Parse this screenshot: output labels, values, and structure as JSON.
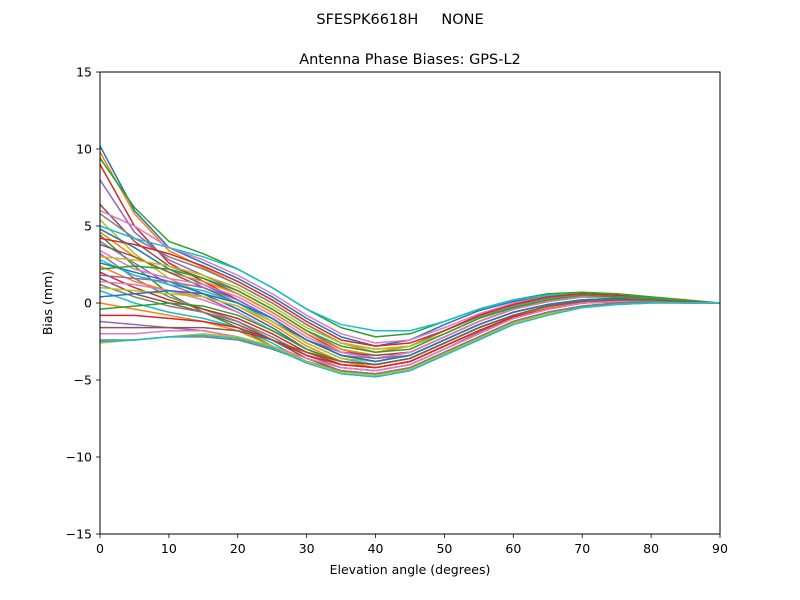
{
  "figure_title": "SFESPK6618H     NONE",
  "chart_data": {
    "type": "line",
    "title": "Antenna Phase Biases: GPS-L2",
    "xlabel": "Elevation angle (degrees)",
    "ylabel": "Bias (mm)",
    "xlim": [
      0,
      90
    ],
    "ylim": [
      -15,
      15
    ],
    "xticks": [
      0,
      10,
      20,
      30,
      40,
      50,
      60,
      70,
      80,
      90
    ],
    "yticks": [
      -15,
      -10,
      -5,
      0,
      5,
      10,
      15
    ],
    "xtick_labels": [
      "0",
      "10",
      "20",
      "30",
      "40",
      "50",
      "60",
      "70",
      "80",
      "90"
    ],
    "ytick_labels": [
      "−15",
      "−10",
      "−5",
      "0",
      "5",
      "10",
      "15"
    ],
    "grid": false,
    "legend": "none",
    "x": [
      0,
      5,
      10,
      15,
      20,
      25,
      30,
      35,
      40,
      45,
      50,
      55,
      60,
      65,
      70,
      75,
      80,
      85,
      90
    ],
    "colors": [
      "#1f77b4",
      "#ff7f0e",
      "#2ca02c",
      "#d62728",
      "#9467bd",
      "#8c564b",
      "#e377c2",
      "#7f7f7f",
      "#bcbd22",
      "#17becf"
    ],
    "series": [
      {
        "values": [
          10.2,
          6.0,
          3.6,
          2.6,
          1.6,
          0.4,
          -1.0,
          -2.2,
          -2.8,
          -2.4,
          -1.4,
          -0.5,
          0.1,
          0.5,
          0.6,
          0.5,
          0.3,
          0.1,
          0.0
        ]
      },
      {
        "values": [
          9.8,
          5.8,
          3.4,
          2.3,
          1.2,
          0.0,
          -1.4,
          -2.6,
          -3.2,
          -2.8,
          -1.8,
          -0.8,
          -0.1,
          0.3,
          0.5,
          0.4,
          0.3,
          0.1,
          0.0
        ]
      },
      {
        "values": [
          9.4,
          6.2,
          4.0,
          3.2,
          2.2,
          1.0,
          -0.4,
          -1.6,
          -2.2,
          -2.0,
          -1.2,
          -0.4,
          0.2,
          0.6,
          0.7,
          0.6,
          0.4,
          0.2,
          0.0
        ]
      },
      {
        "values": [
          9.0,
          5.0,
          2.6,
          1.4,
          0.2,
          -1.0,
          -2.4,
          -3.4,
          -3.8,
          -3.4,
          -2.4,
          -1.4,
          -0.6,
          -0.1,
          0.2,
          0.2,
          0.2,
          0.1,
          0.0
        ]
      },
      {
        "values": [
          8.0,
          4.6,
          2.8,
          1.8,
          0.8,
          -0.4,
          -1.8,
          -3.0,
          -3.6,
          -3.2,
          -2.2,
          -1.2,
          -0.4,
          0.1,
          0.4,
          0.4,
          0.3,
          0.1,
          0.0
        ]
      },
      {
        "values": [
          6.4,
          4.0,
          2.4,
          1.6,
          0.6,
          -0.6,
          -2.0,
          -3.2,
          -3.6,
          -3.2,
          -2.2,
          -1.2,
          -0.4,
          0.1,
          0.4,
          0.4,
          0.3,
          0.1,
          0.0
        ]
      },
      {
        "values": [
          6.0,
          5.0,
          3.6,
          2.8,
          1.8,
          0.6,
          -0.8,
          -2.0,
          -2.6,
          -2.4,
          -1.6,
          -0.7,
          0.0,
          0.4,
          0.6,
          0.5,
          0.3,
          0.1,
          0.0
        ]
      },
      {
        "values": [
          5.8,
          4.2,
          3.0,
          2.2,
          1.2,
          0.0,
          -1.4,
          -2.6,
          -3.0,
          -2.8,
          -1.8,
          -0.9,
          -0.2,
          0.3,
          0.5,
          0.4,
          0.3,
          0.1,
          0.0
        ]
      },
      {
        "values": [
          5.4,
          3.2,
          1.6,
          0.6,
          -0.4,
          -1.6,
          -3.0,
          -4.0,
          -4.2,
          -3.8,
          -2.8,
          -1.8,
          -0.9,
          -0.4,
          0.0,
          0.1,
          0.1,
          0.1,
          0.0
        ]
      },
      {
        "values": [
          5.0,
          4.2,
          3.6,
          3.0,
          2.2,
          1.0,
          -0.4,
          -1.4,
          -1.8,
          -1.8,
          -1.2,
          -0.4,
          0.2,
          0.5,
          0.6,
          0.5,
          0.3,
          0.1,
          0.0
        ]
      },
      {
        "values": [
          4.8,
          3.6,
          2.2,
          1.2,
          0.2,
          -1.0,
          -2.4,
          -3.4,
          -3.8,
          -3.4,
          -2.4,
          -1.4,
          -0.6,
          -0.1,
          0.2,
          0.3,
          0.2,
          0.1,
          0.0
        ]
      },
      {
        "values": [
          4.6,
          3.0,
          2.0,
          1.4,
          0.6,
          -0.6,
          -2.0,
          -3.0,
          -3.4,
          -3.2,
          -2.2,
          -1.2,
          -0.4,
          0.1,
          0.4,
          0.4,
          0.3,
          0.1,
          0.0
        ]
      },
      {
        "values": [
          4.4,
          2.4,
          0.6,
          -0.6,
          -1.6,
          -2.8,
          -3.8,
          -4.4,
          -4.6,
          -4.2,
          -3.2,
          -2.2,
          -1.2,
          -0.6,
          -0.2,
          0.0,
          0.1,
          0.0,
          0.0
        ]
      },
      {
        "values": [
          4.2,
          3.8,
          3.2,
          2.4,
          1.4,
          0.2,
          -1.2,
          -2.4,
          -2.8,
          -2.6,
          -1.8,
          -0.8,
          -0.1,
          0.4,
          0.6,
          0.5,
          0.3,
          0.1,
          0.0
        ]
      },
      {
        "values": [
          4.0,
          2.6,
          1.2,
          0.4,
          -0.6,
          -1.8,
          -3.0,
          -3.8,
          -4.0,
          -3.6,
          -2.6,
          -1.6,
          -0.8,
          -0.2,
          0.1,
          0.2,
          0.2,
          0.1,
          0.0
        ]
      },
      {
        "values": [
          3.8,
          3.0,
          2.0,
          1.0,
          0.0,
          -1.2,
          -2.4,
          -3.2,
          -3.4,
          -3.2,
          -2.2,
          -1.2,
          -0.4,
          0.1,
          0.4,
          0.4,
          0.3,
          0.1,
          0.0
        ]
      },
      {
        "values": [
          3.4,
          2.2,
          1.6,
          1.2,
          0.4,
          -0.8,
          -2.2,
          -3.2,
          -3.6,
          -3.2,
          -2.2,
          -1.2,
          -0.4,
          0.1,
          0.4,
          0.4,
          0.3,
          0.1,
          0.0
        ]
      },
      {
        "values": [
          3.2,
          1.6,
          0.4,
          -0.4,
          -1.2,
          -2.4,
          -3.6,
          -4.2,
          -4.4,
          -4.0,
          -3.0,
          -1.9,
          -1.0,
          -0.4,
          0.0,
          0.1,
          0.1,
          0.0,
          0.0
        ]
      },
      {
        "values": [
          3.0,
          2.8,
          2.4,
          1.8,
          1.0,
          -0.2,
          -1.6,
          -2.6,
          -3.0,
          -2.8,
          -2.0,
          -1.0,
          -0.3,
          0.2,
          0.5,
          0.4,
          0.3,
          0.1,
          0.0
        ]
      },
      {
        "values": [
          2.8,
          1.8,
          1.2,
          0.8,
          0.0,
          -1.2,
          -2.6,
          -3.6,
          -4.0,
          -3.6,
          -2.6,
          -1.6,
          -0.8,
          -0.2,
          0.1,
          0.2,
          0.2,
          0.1,
          0.0
        ]
      },
      {
        "values": [
          2.6,
          2.0,
          1.4,
          0.6,
          -0.4,
          -1.6,
          -3.0,
          -3.8,
          -4.0,
          -3.6,
          -2.6,
          -1.6,
          -0.8,
          -0.2,
          0.1,
          0.2,
          0.2,
          0.1,
          0.0
        ]
      },
      {
        "values": [
          2.4,
          1.4,
          0.8,
          0.4,
          -0.2,
          -1.4,
          -2.8,
          -3.8,
          -4.2,
          -3.8,
          -2.8,
          -1.8,
          -0.9,
          -0.3,
          0.0,
          0.1,
          0.1,
          0.1,
          0.0
        ]
      },
      {
        "values": [
          2.2,
          2.4,
          2.2,
          1.6,
          0.8,
          -0.4,
          -1.8,
          -2.8,
          -3.2,
          -3.0,
          -2.0,
          -1.0,
          -0.3,
          0.2,
          0.5,
          0.4,
          0.3,
          0.1,
          0.0
        ]
      },
      {
        "values": [
          2.0,
          1.0,
          0.2,
          -0.4,
          -1.0,
          -2.0,
          -3.2,
          -4.0,
          -4.2,
          -3.8,
          -2.8,
          -1.8,
          -0.9,
          -0.4,
          0.0,
          0.1,
          0.1,
          0.0,
          0.0
        ]
      },
      {
        "values": [
          1.8,
          1.6,
          1.4,
          1.0,
          0.2,
          -1.0,
          -2.4,
          -3.4,
          -3.6,
          -3.4,
          -2.4,
          -1.4,
          -0.6,
          -0.1,
          0.2,
          0.3,
          0.2,
          0.1,
          0.0
        ]
      },
      {
        "values": [
          1.6,
          0.6,
          0.0,
          -0.6,
          -1.4,
          -2.4,
          -3.6,
          -4.4,
          -4.6,
          -4.2,
          -3.2,
          -2.2,
          -1.2,
          -0.6,
          -0.2,
          0.0,
          0.1,
          0.0,
          0.0
        ]
      },
      {
        "values": [
          1.4,
          1.2,
          0.8,
          0.2,
          -0.6,
          -1.8,
          -3.0,
          -3.8,
          -4.0,
          -3.6,
          -2.6,
          -1.6,
          -0.8,
          -0.2,
          0.1,
          0.2,
          0.2,
          0.1,
          0.0
        ]
      },
      {
        "values": [
          1.2,
          0.4,
          -0.2,
          -0.6,
          -1.2,
          -2.2,
          -3.4,
          -4.2,
          -4.4,
          -4.0,
          -3.0,
          -2.0,
          -1.0,
          -0.4,
          0.0,
          0.1,
          0.1,
          0.0,
          0.0
        ]
      },
      {
        "values": [
          1.0,
          0.8,
          0.6,
          0.4,
          -0.2,
          -1.2,
          -2.6,
          -3.6,
          -3.8,
          -3.4,
          -2.4,
          -1.4,
          -0.6,
          -0.1,
          0.2,
          0.3,
          0.2,
          0.1,
          0.0
        ]
      },
      {
        "values": [
          0.8,
          0.0,
          -0.6,
          -1.0,
          -1.6,
          -2.6,
          -3.8,
          -4.4,
          -4.6,
          -4.2,
          -3.2,
          -2.2,
          -1.2,
          -0.6,
          -0.2,
          0.0,
          0.1,
          0.0,
          0.0
        ]
      },
      {
        "values": [
          0.4,
          0.6,
          0.8,
          0.6,
          0.0,
          -1.0,
          -2.4,
          -3.4,
          -3.8,
          -3.4,
          -2.4,
          -1.4,
          -0.6,
          -0.1,
          0.2,
          0.3,
          0.2,
          0.1,
          0.0
        ]
      },
      {
        "values": [
          0.0,
          -0.4,
          -0.8,
          -1.2,
          -1.8,
          -2.8,
          -3.8,
          -4.4,
          -4.6,
          -4.2,
          -3.2,
          -2.2,
          -1.2,
          -0.6,
          -0.2,
          0.0,
          0.1,
          0.0,
          0.0
        ]
      },
      {
        "values": [
          -0.4,
          -0.2,
          0.0,
          -0.2,
          -0.8,
          -1.8,
          -3.0,
          -3.8,
          -4.0,
          -3.6,
          -2.6,
          -1.6,
          -0.8,
          -0.2,
          0.1,
          0.2,
          0.2,
          0.1,
          0.0
        ]
      },
      {
        "values": [
          -0.8,
          -0.8,
          -1.0,
          -1.2,
          -1.6,
          -2.4,
          -3.4,
          -4.0,
          -4.2,
          -3.8,
          -2.8,
          -1.8,
          -0.9,
          -0.4,
          0.0,
          0.1,
          0.1,
          0.0,
          0.0
        ]
      },
      {
        "values": [
          -1.2,
          -1.4,
          -1.6,
          -1.8,
          -2.2,
          -2.8,
          -3.8,
          -4.4,
          -4.6,
          -4.2,
          -3.2,
          -2.2,
          -1.2,
          -0.6,
          -0.2,
          0.0,
          0.1,
          0.0,
          0.0
        ]
      },
      {
        "values": [
          -1.6,
          -1.6,
          -1.6,
          -1.6,
          -1.8,
          -2.4,
          -3.2,
          -3.8,
          -4.0,
          -3.6,
          -2.6,
          -1.6,
          -0.8,
          -0.2,
          0.1,
          0.2,
          0.2,
          0.1,
          0.0
        ]
      },
      {
        "values": [
          -2.0,
          -2.0,
          -1.8,
          -1.8,
          -2.2,
          -2.8,
          -3.6,
          -4.2,
          -4.4,
          -4.0,
          -3.0,
          -2.0,
          -1.0,
          -0.4,
          0.0,
          0.1,
          0.1,
          0.0,
          0.0
        ]
      },
      {
        "values": [
          -2.4,
          -2.4,
          -2.2,
          -2.2,
          -2.4,
          -3.0,
          -3.8,
          -4.4,
          -4.6,
          -4.2,
          -3.2,
          -2.2,
          -1.2,
          -0.6,
          -0.2,
          0.0,
          0.1,
          0.0,
          0.0
        ]
      },
      {
        "values": [
          -2.6,
          -2.4,
          -2.2,
          -2.0,
          -2.2,
          -2.8,
          -3.8,
          -4.5,
          -4.7,
          -4.3,
          -3.3,
          -2.3,
          -1.3,
          -0.7,
          -0.3,
          -0.1,
          0.0,
          0.0,
          0.0
        ]
      },
      {
        "values": [
          -2.5,
          -2.4,
          -2.2,
          -2.1,
          -2.3,
          -2.9,
          -3.9,
          -4.6,
          -4.8,
          -4.4,
          -3.4,
          -2.4,
          -1.4,
          -0.8,
          -0.3,
          -0.1,
          0.0,
          0.0,
          0.0
        ]
      }
    ]
  }
}
